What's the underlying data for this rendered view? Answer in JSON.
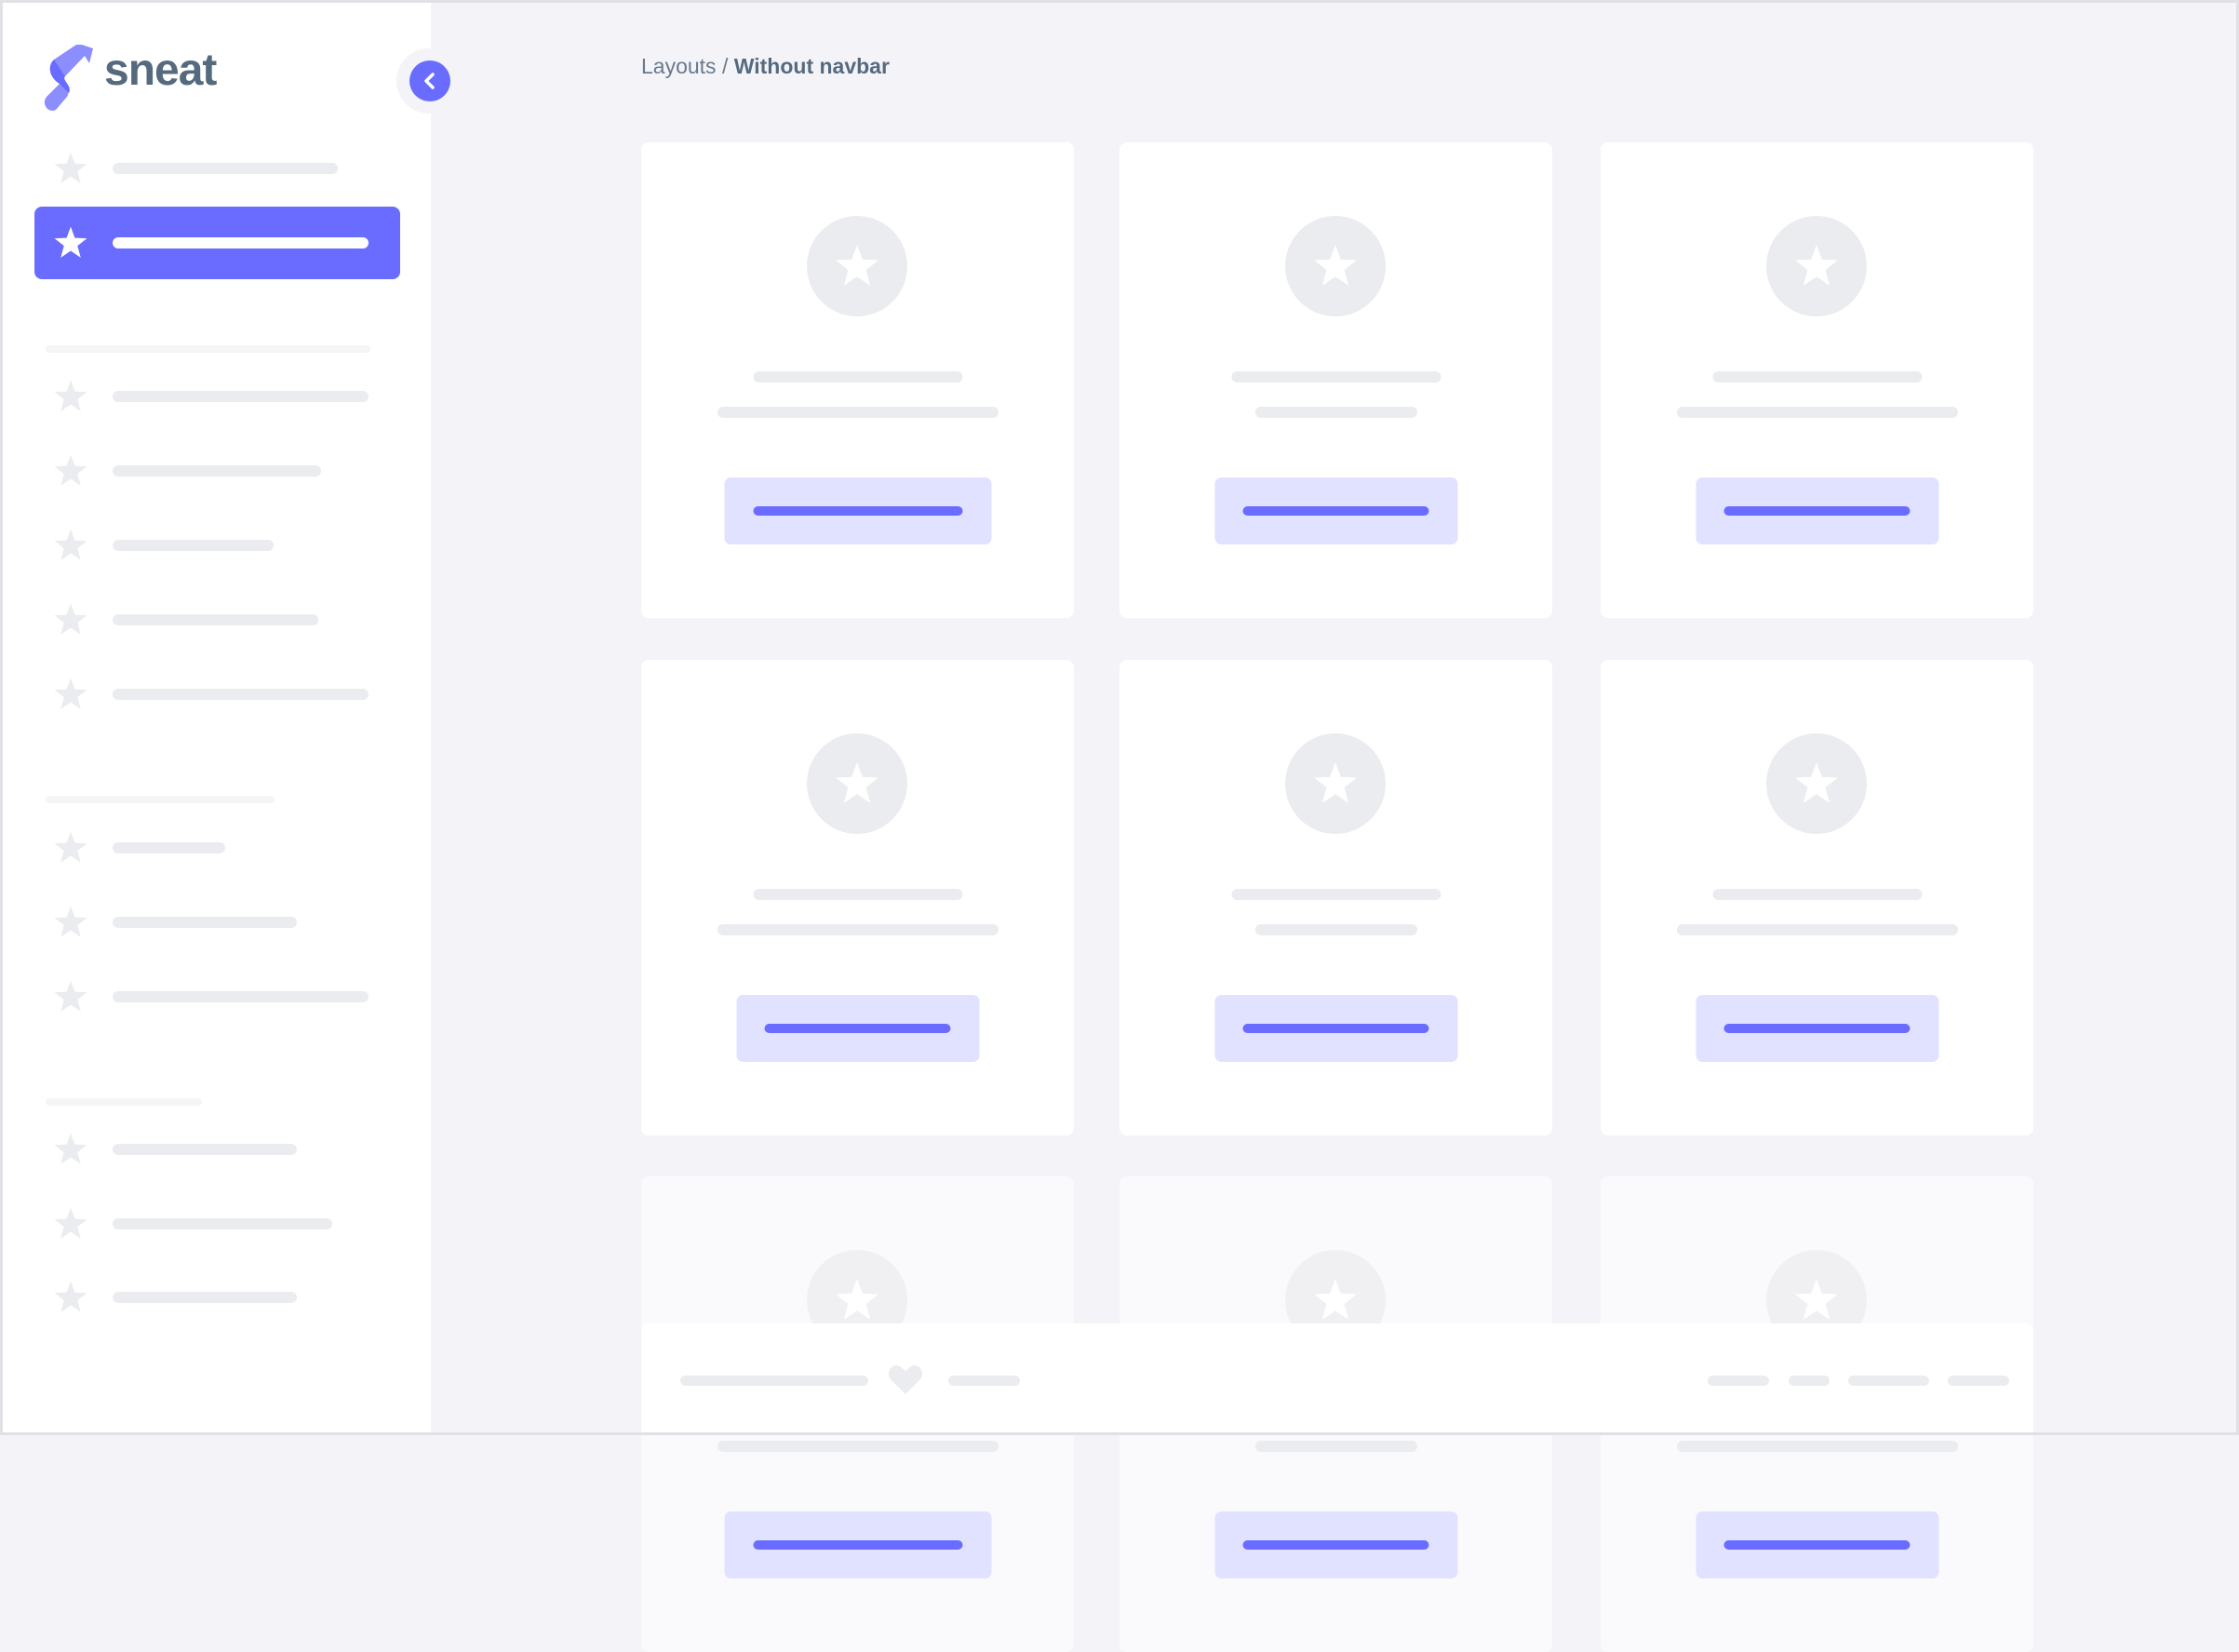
{
  "brand": {
    "name": "sneat",
    "accent": "#696cff"
  },
  "breadcrumb": {
    "parent": "Layouts",
    "separator": " / ",
    "current": "Without navbar"
  },
  "icons": {
    "menu_item": "star-icon",
    "toggle": "chevron-left-icon",
    "footer": "heart-icon",
    "card": "star-icon"
  }
}
